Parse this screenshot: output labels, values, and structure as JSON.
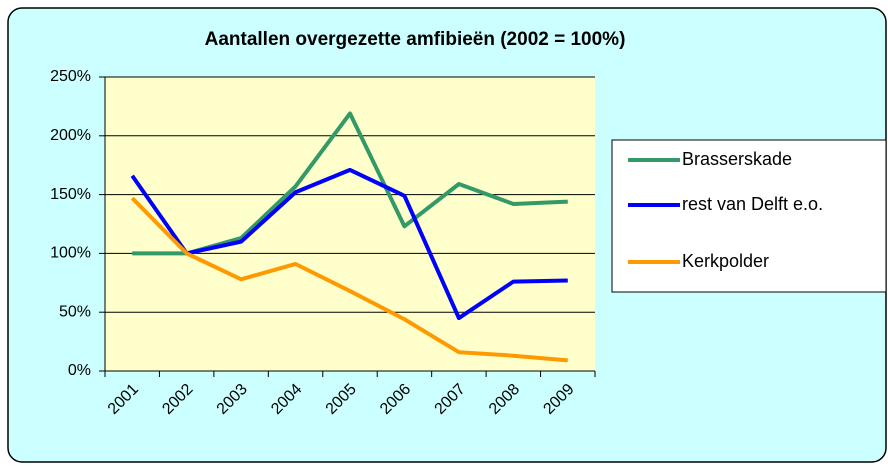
{
  "chart_data": {
    "type": "line",
    "title": "Aantallen overgezette amfibieën (2002 = 100%)",
    "categories": [
      "2001",
      "2002",
      "2003",
      "2004",
      "2005",
      "2006",
      "2007",
      "2008",
      "2009"
    ],
    "series": [
      {
        "name": "Brasserskade",
        "color": "#339966",
        "values": [
          100,
          100,
          113,
          157,
          219,
          123,
          159,
          142,
          144
        ]
      },
      {
        "name": "rest van Delft e.o.",
        "color": "#0000ff",
        "values": [
          166,
          100,
          110,
          152,
          171,
          149,
          45,
          76,
          77
        ]
      },
      {
        "name": "Kerkpolder",
        "color": "#ff9900",
        "values": [
          147,
          100,
          78,
          91,
          68,
          44,
          16,
          13,
          9
        ]
      }
    ],
    "ylim": [
      0,
      250
    ],
    "yticks": [
      {
        "value": 0,
        "label": "0%"
      },
      {
        "value": 50,
        "label": "50%"
      },
      {
        "value": 100,
        "label": "100%"
      },
      {
        "value": 150,
        "label": "150%"
      },
      {
        "value": 200,
        "label": "200%"
      },
      {
        "value": 250,
        "label": "250%"
      }
    ],
    "grid": true,
    "legend": "right"
  }
}
